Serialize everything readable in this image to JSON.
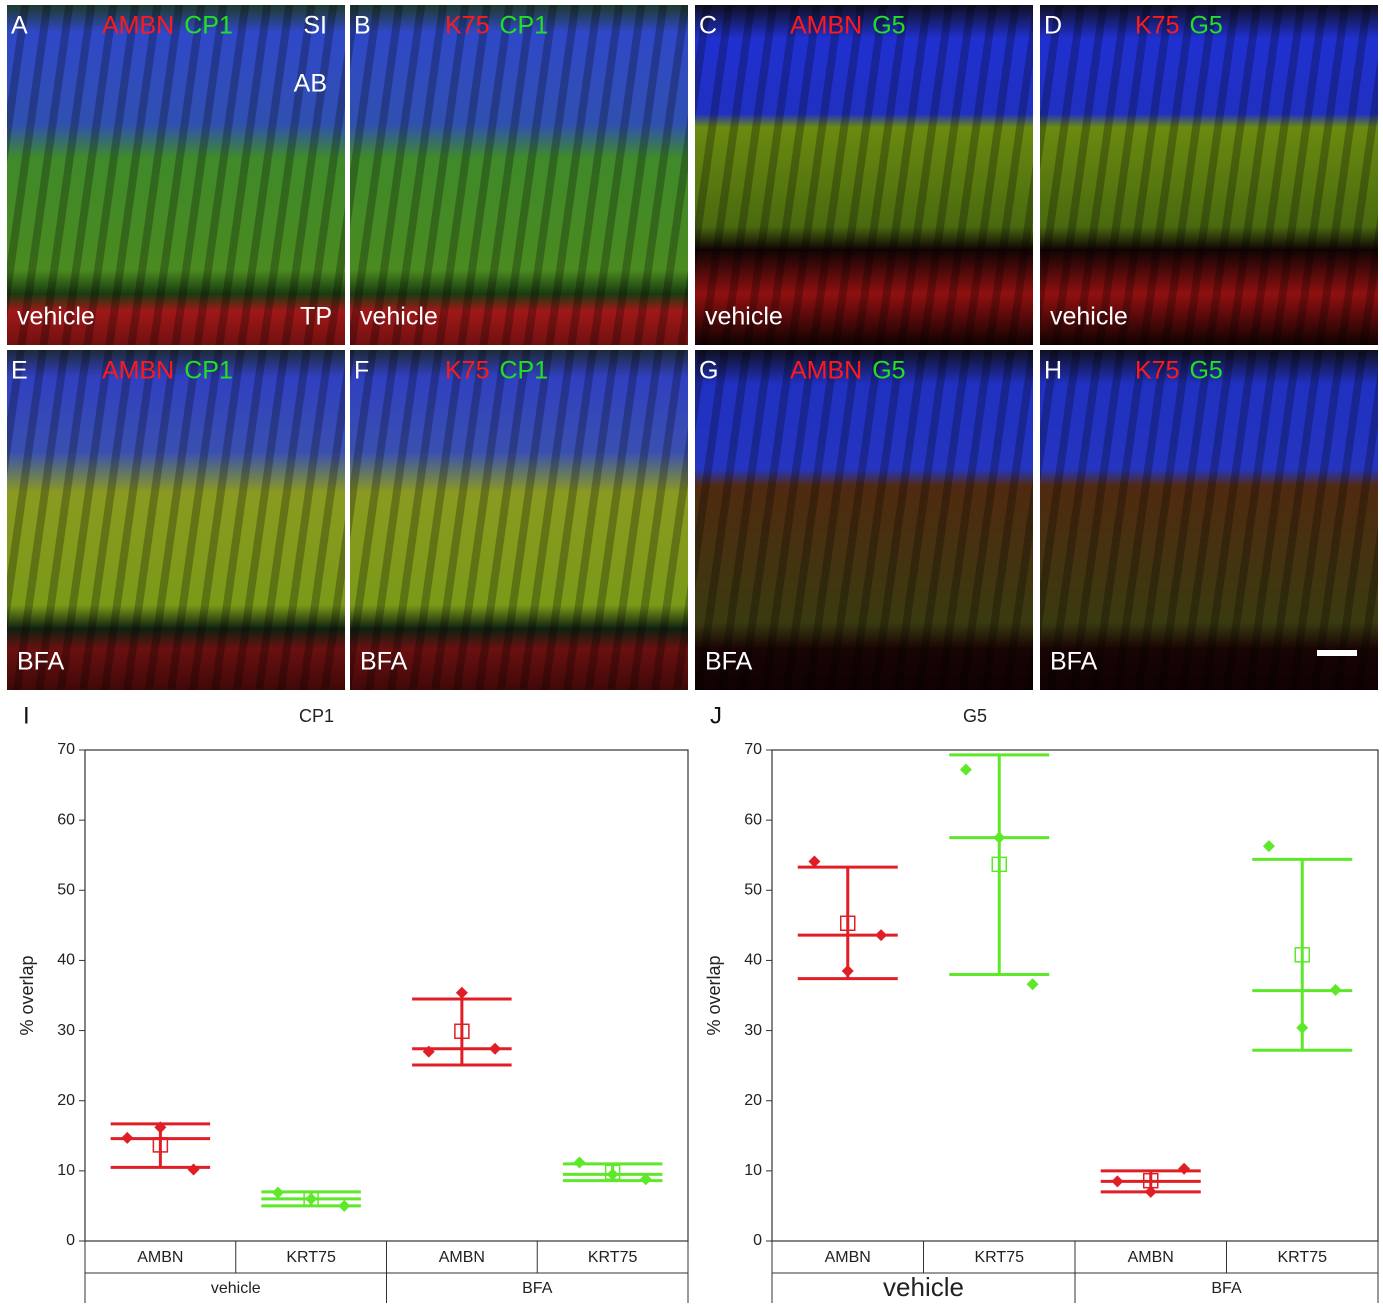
{
  "panels": [
    {
      "letter": "A",
      "red": "AMBN",
      "green": "CP1",
      "treatment": "vehicle",
      "layers": [
        "SI",
        "AB",
        "TP"
      ]
    },
    {
      "letter": "B",
      "red": "K75",
      "green": "CP1",
      "treatment": "vehicle"
    },
    {
      "letter": "C",
      "red": "AMBN",
      "green": "G5",
      "treatment": "vehicle"
    },
    {
      "letter": "D",
      "red": "K75",
      "green": "G5",
      "treatment": "vehicle"
    },
    {
      "letter": "E",
      "red": "AMBN",
      "green": "CP1",
      "treatment": "BFA"
    },
    {
      "letter": "F",
      "red": "K75",
      "green": "CP1",
      "treatment": "BFA"
    },
    {
      "letter": "G",
      "red": "AMBN",
      "green": "G5",
      "treatment": "BFA"
    },
    {
      "letter": "H",
      "red": "K75",
      "green": "G5",
      "treatment": "BFA"
    }
  ],
  "chart_data": [
    {
      "type": "meanbar",
      "letter": "I",
      "title": "CP1",
      "y_label": "% overlap",
      "categories": [
        "AMBN",
        "KRT75",
        "AMBN",
        "KRT75"
      ],
      "groups": [
        "vehicle",
        "BFA"
      ],
      "ylim": [
        0,
        70
      ],
      "yticks": [
        0,
        10,
        20,
        30,
        40,
        50,
        60,
        70
      ],
      "series": [
        {
          "color": "#e01e26",
          "points": [
            14.7,
            16.2,
            10.2
          ],
          "mean": 13.7,
          "upper": 16.7,
          "middle": 14.6,
          "lower": 10.5
        },
        {
          "color": "#5ee82a",
          "points": [
            6.9,
            6.0,
            5.0
          ],
          "mean": 6.0,
          "upper": 7.0,
          "middle": 6.0,
          "lower": 5.0
        },
        {
          "color": "#e01e26",
          "points": [
            27.0,
            35.4,
            27.4
          ],
          "mean": 29.9,
          "upper": 34.5,
          "middle": 27.4,
          "lower": 25.1
        },
        {
          "color": "#5ee82a",
          "points": [
            11.2,
            9.5,
            8.8
          ],
          "mean": 9.8,
          "upper": 11.0,
          "middle": 9.5,
          "lower": 8.6
        }
      ]
    },
    {
      "type": "meanbar",
      "letter": "J",
      "title": "G5",
      "y_label": "% overlap",
      "categories": [
        "AMBN",
        "KRT75",
        "AMBN",
        "KRT75"
      ],
      "groups": [
        "vehicle",
        "BFA"
      ],
      "ylim": [
        0,
        70
      ],
      "yticks": [
        0,
        10,
        20,
        30,
        40,
        50,
        60,
        70
      ],
      "series": [
        {
          "color": "#e01e26",
          "points": [
            54.1,
            38.5,
            43.6
          ],
          "mean": 45.3,
          "upper": 53.3,
          "middle": 43.6,
          "lower": 37.4
        },
        {
          "color": "#5ee82a",
          "points": [
            67.2,
            57.5,
            36.6
          ],
          "mean": 53.7,
          "upper": 69.3,
          "middle": 57.5,
          "lower": 38.0
        },
        {
          "color": "#e01e26",
          "points": [
            8.5,
            7.0,
            10.3
          ],
          "mean": 8.6,
          "upper": 10.0,
          "middle": 8.5,
          "lower": 7.0
        },
        {
          "color": "#5ee82a",
          "points": [
            56.3,
            30.4,
            35.8
          ],
          "mean": 40.8,
          "upper": 54.4,
          "middle": 35.7,
          "lower": 27.2
        }
      ]
    }
  ]
}
